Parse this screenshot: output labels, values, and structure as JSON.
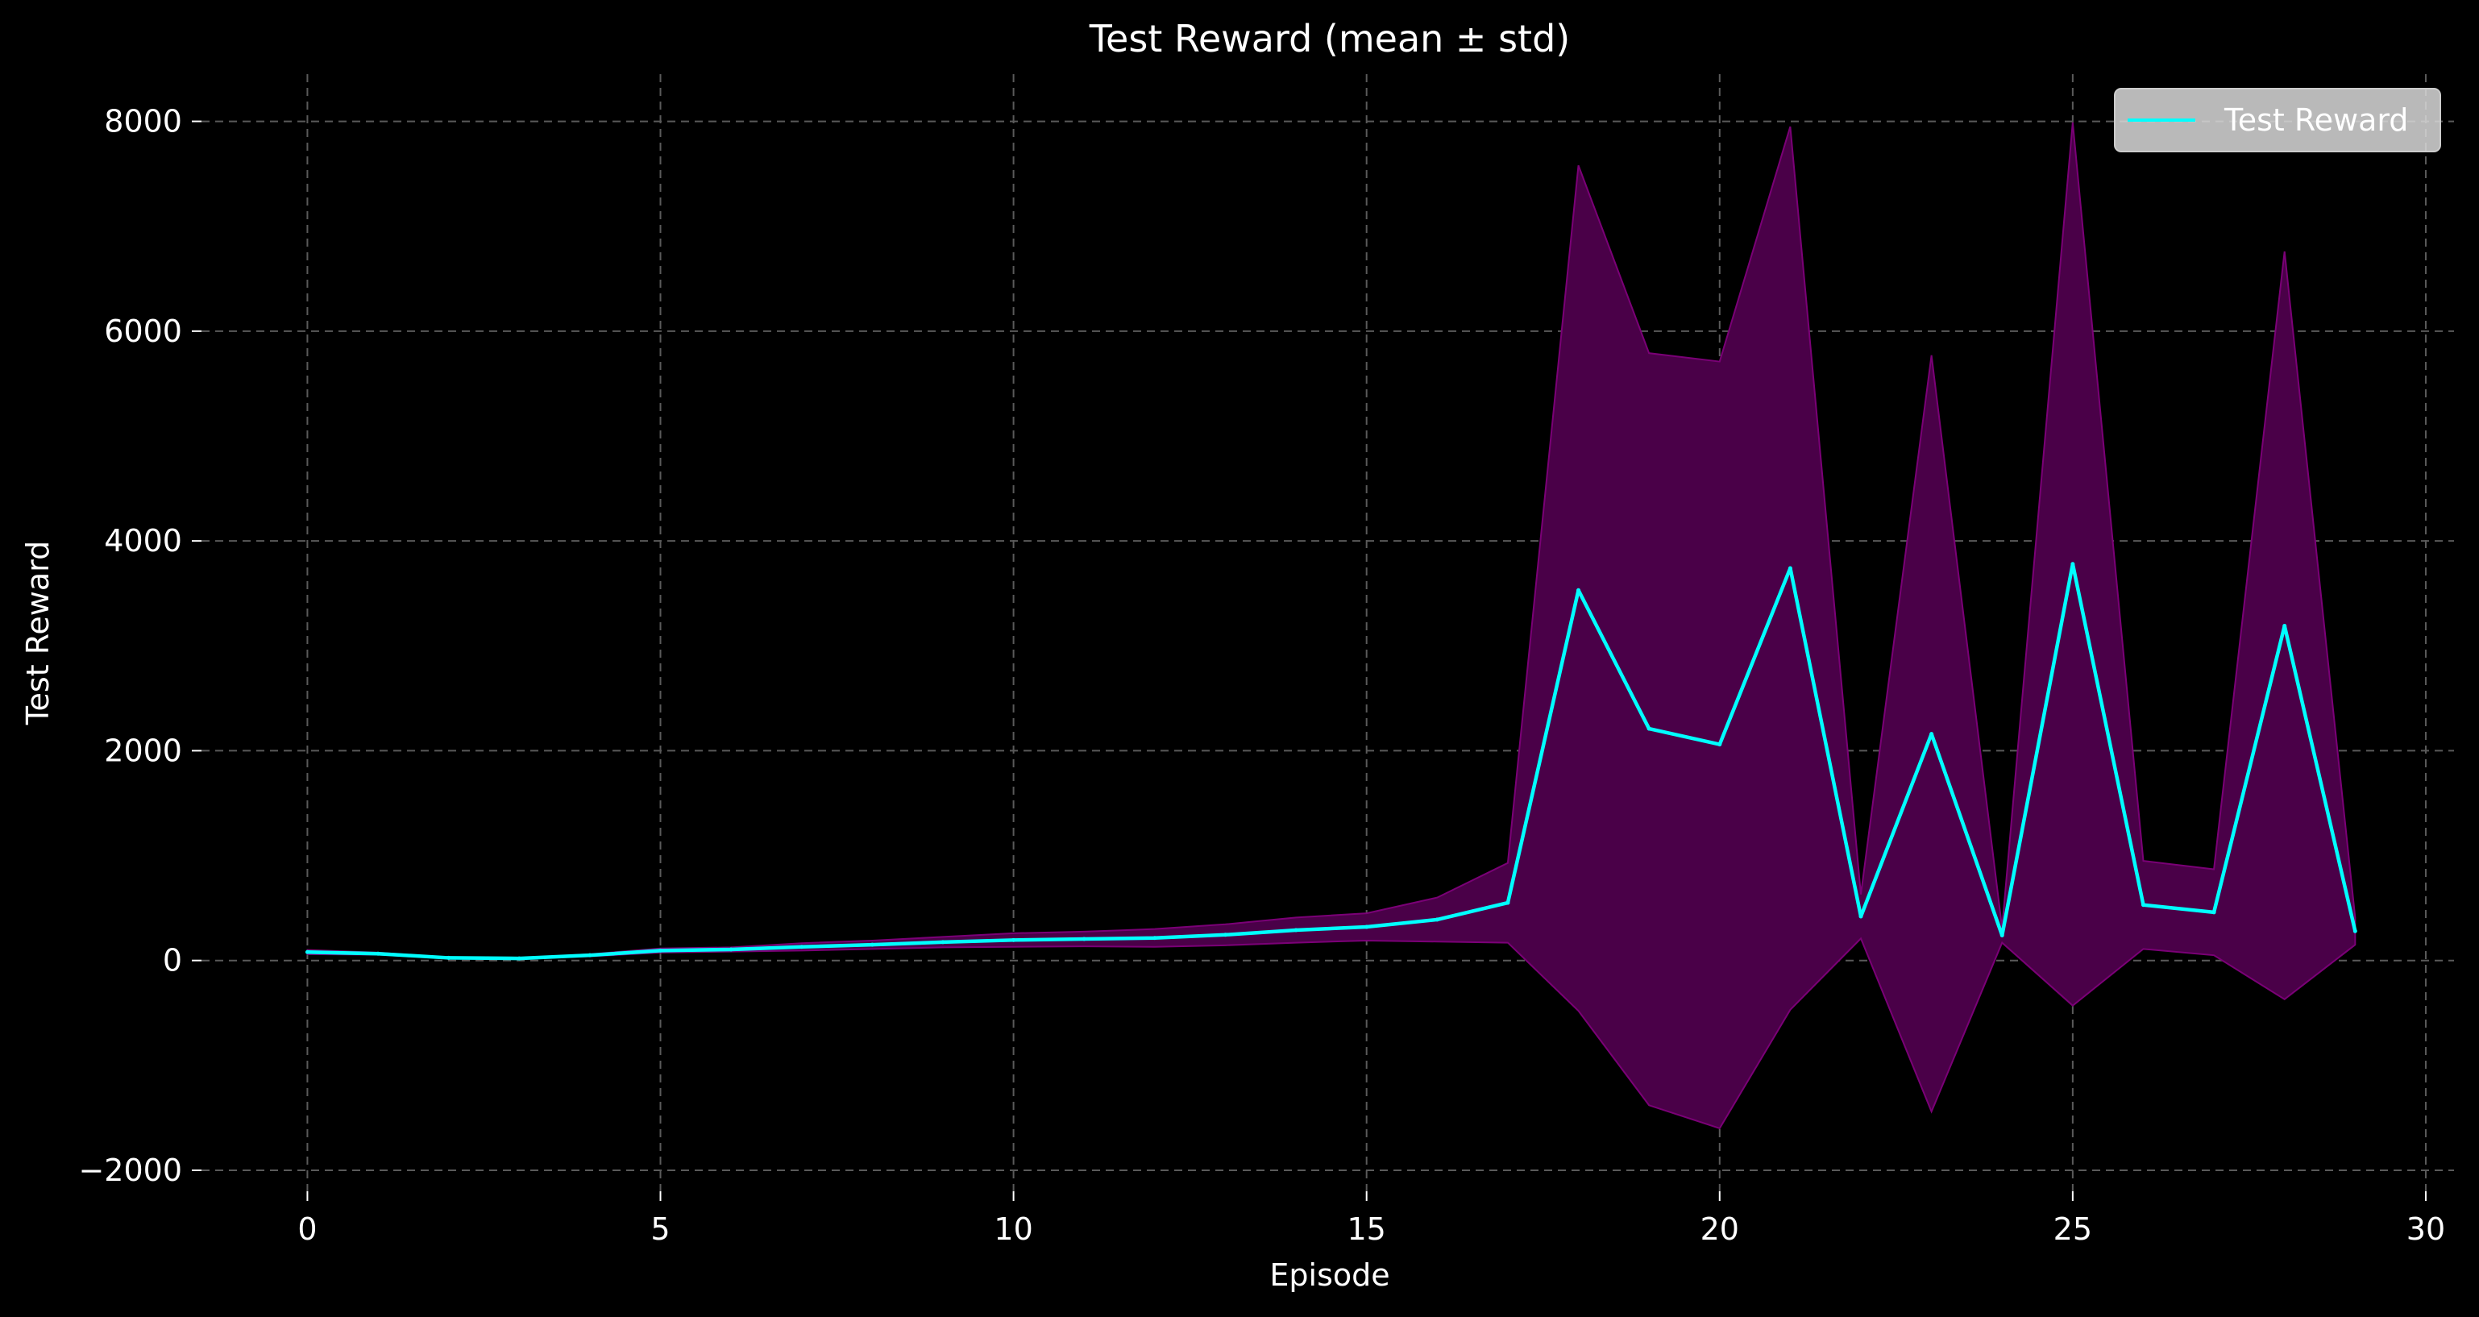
{
  "chart_data": {
    "type": "line",
    "title": "Test Reward (mean ± std)",
    "xlabel": "Episode",
    "ylabel": "Test Reward",
    "xlim": [
      -1.5,
      30.4
    ],
    "ylim": [
      -2200,
      8450
    ],
    "x_ticks": [
      0,
      5,
      10,
      15,
      20,
      25,
      30
    ],
    "x_tick_labels": [
      "0",
      "5",
      "10",
      "15",
      "20",
      "25",
      "30"
    ],
    "y_ticks": [
      -2000,
      0,
      2000,
      4000,
      6000,
      8000
    ],
    "y_tick_labels": [
      "−2000",
      "0",
      "2000",
      "4000",
      "6000",
      "8000"
    ],
    "grid": true,
    "legend": {
      "position": "top-right",
      "entries": [
        "Test Reward"
      ]
    },
    "colors": {
      "background": "#000000",
      "line": "#00ffff",
      "band": "#4a0048",
      "band_edge": "#7a0076",
      "legend_box": "#d9d9d9"
    },
    "x": [
      0,
      1,
      2,
      3,
      4,
      5,
      6,
      7,
      8,
      9,
      10,
      11,
      12,
      13,
      14,
      15,
      16,
      17,
      18,
      19,
      20,
      21,
      22,
      23,
      24,
      25,
      26,
      27,
      28,
      29
    ],
    "series": [
      {
        "name": "Test Reward",
        "values": [
          80,
          65,
          25,
          20,
          50,
          95,
          105,
          130,
          150,
          175,
          195,
          205,
          215,
          245,
          290,
          320,
          390,
          550,
          3530,
          2210,
          2060,
          3740,
          420,
          2160,
          240,
          3780,
          530,
          460,
          3190,
          280
        ],
        "lower": [
          60,
          55,
          20,
          15,
          40,
          75,
          85,
          95,
          110,
          125,
          130,
          135,
          130,
          145,
          170,
          190,
          180,
          170,
          -480,
          -1380,
          -1600,
          -470,
          210,
          -1440,
          170,
          -430,
          110,
          50,
          -370,
          150
        ],
        "upper": [
          100,
          75,
          30,
          25,
          60,
          115,
          125,
          165,
          190,
          225,
          260,
          275,
          300,
          345,
          410,
          450,
          600,
          930,
          7580,
          5790,
          5710,
          7950,
          630,
          5770,
          310,
          7990,
          950,
          870,
          6760,
          410
        ]
      }
    ]
  }
}
